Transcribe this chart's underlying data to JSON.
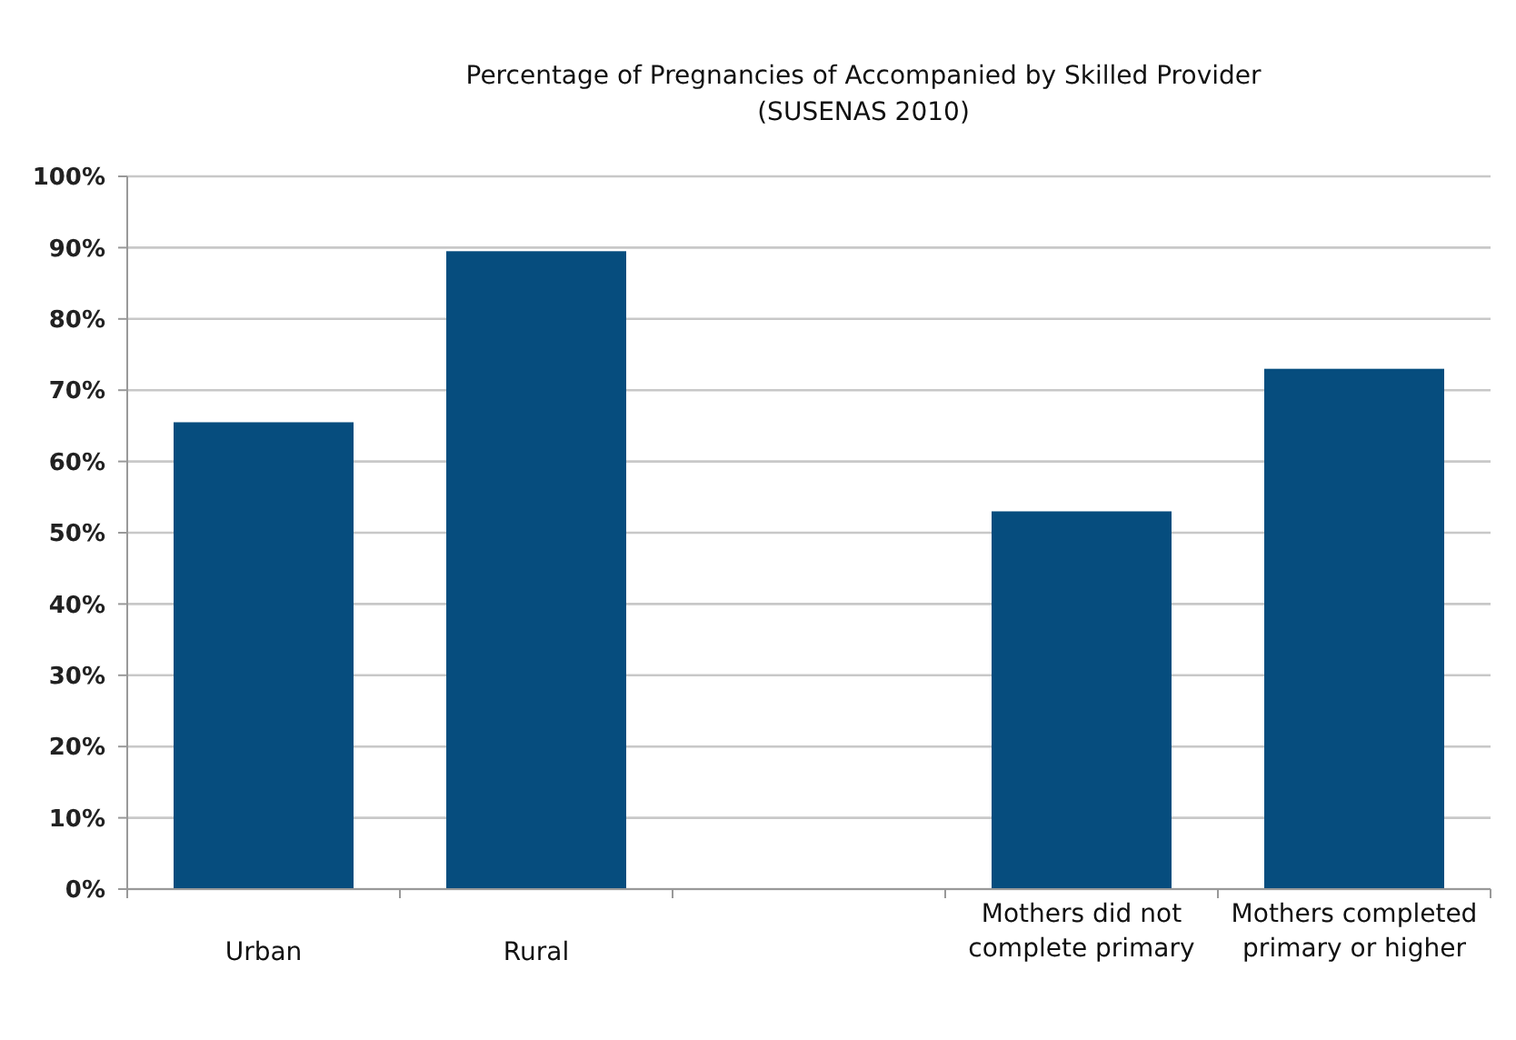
{
  "chart_data": {
    "type": "bar",
    "title": "Percentage of Pregnancies of Accompanied by Skilled Provider",
    "subtitle": "(SUSENAS 2010)",
    "categories": [
      "Urban",
      "Rural",
      null,
      "Mothers did not complete primary",
      "Mothers completed primary or higher"
    ],
    "values": [
      65.5,
      89.5,
      null,
      53,
      73
    ],
    "color": "#064d7e",
    "ylim": [
      0,
      100
    ],
    "yticks": [
      {
        "value": 0,
        "label": "0%"
      },
      {
        "value": 10,
        "label": "10%"
      },
      {
        "value": 20,
        "label": "20%"
      },
      {
        "value": 30,
        "label": "30%"
      },
      {
        "value": 40,
        "label": "40%"
      },
      {
        "value": 50,
        "label": "50%"
      },
      {
        "value": 60,
        "label": "60%"
      },
      {
        "value": 70,
        "label": "70%"
      },
      {
        "value": 80,
        "label": "80%"
      },
      {
        "value": 90,
        "label": "90%"
      },
      {
        "value": 100,
        "label": "100%"
      }
    ],
    "grid": "y"
  }
}
